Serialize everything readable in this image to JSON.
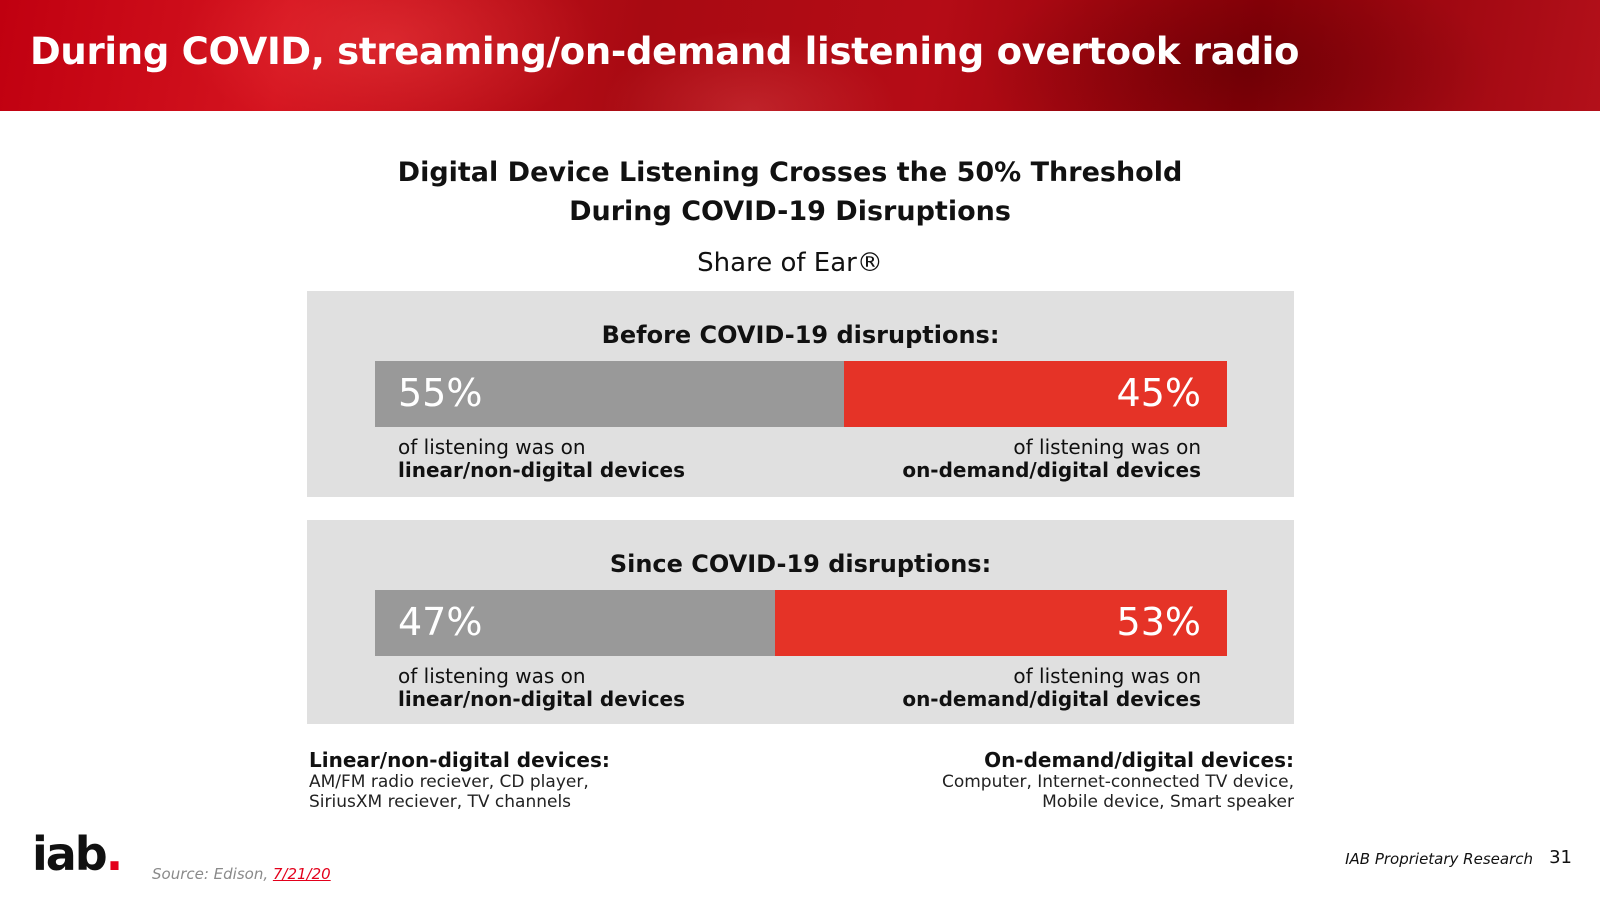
{
  "slide": {
    "title": "During COVID, streaming/on-demand listening overtook radio",
    "source_label": "Source: Edison, ",
    "source_date": "7/21/20",
    "footer_note": "IAB Proprietary Research",
    "page_number": "31",
    "logo_text": "iab",
    "logo_dot": "."
  },
  "chart": {
    "title_line1": "Digital Device Listening Crosses the 50% Threshold",
    "title_line2": "During COVID-19 Disruptions",
    "subtitle": "Share of Ear®",
    "panels": [
      {
        "heading": "Before COVID-19 disruptions:",
        "left_label": "55%",
        "right_label": "45%",
        "left_desc_plain": "of listening was on",
        "left_desc_bold": "linear/non-digital devices",
        "right_desc_plain": "of listening was on",
        "right_desc_bold": "on-demand/digital devices"
      },
      {
        "heading": "Since COVID-19 disruptions:",
        "left_label": "47%",
        "right_label": "53%",
        "left_desc_plain": "of listening was on",
        "left_desc_bold": "linear/non-digital devices",
        "right_desc_plain": "of listening was on",
        "right_desc_bold": "on-demand/digital devices"
      }
    ],
    "legend_left": {
      "title": "Linear/non-digital devices:",
      "line1": "AM/FM radio reciever, CD player,",
      "line2": "SiriusXM reciever, TV channels"
    },
    "legend_right": {
      "title": "On-demand/digital devices:",
      "line1": "Computer, Internet-connected TV device,",
      "line2": "Mobile device, Smart speaker"
    }
  },
  "chart_data": {
    "type": "bar",
    "orientation": "horizontal-stacked-100",
    "title": "Digital Device Listening Crosses the 50% Threshold During COVID-19 Disruptions",
    "subtitle": "Share of Ear®",
    "categories": [
      "Before COVID-19 disruptions:",
      "Since COVID-19 disruptions:"
    ],
    "series": [
      {
        "name": "linear/non-digital devices",
        "values": [
          55,
          47
        ],
        "color": "#999999"
      },
      {
        "name": "on-demand/digital devices",
        "values": [
          45,
          53
        ],
        "color": "#e53327"
      }
    ],
    "unit": "%",
    "xlim": [
      0,
      100
    ],
    "grid": false
  }
}
